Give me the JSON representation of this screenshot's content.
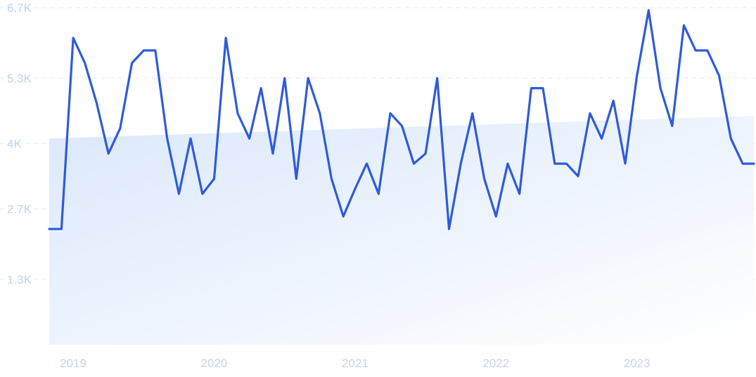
{
  "chart_data": {
    "type": "line",
    "title": "",
    "xlabel": "",
    "ylabel": "",
    "colors": {
      "line": "#2f5bd9",
      "trend_fill_top": "#dbe8fb",
      "trend_fill_bottom": "#ffffff",
      "tick_text": "#c5d3f1",
      "grid": "#e3e8f2"
    },
    "grid": true,
    "y_ticks": [
      {
        "value": 6700,
        "label": "6.7K"
      },
      {
        "value": 5300,
        "label": "5.3K"
      },
      {
        "value": 4000,
        "label": "4K"
      },
      {
        "value": 2700,
        "label": "2.7K"
      },
      {
        "value": 1300,
        "label": "1.3K"
      }
    ],
    "ylim": [
      0,
      6700
    ],
    "x_ticks": [
      {
        "value": 2019.0,
        "label": "2019"
      },
      {
        "value": 2020.0,
        "label": "2020"
      },
      {
        "value": 2021.0,
        "label": "2021"
      },
      {
        "value": 2022.0,
        "label": "2022"
      },
      {
        "value": 2023.0,
        "label": "2023"
      }
    ],
    "xlim": [
      2018.83,
      2023.83
    ],
    "trend": {
      "start": 4100,
      "end": 4550
    },
    "series": [
      {
        "x": [
          2018.83,
          2018.917,
          2019.0,
          2019.083,
          2019.167,
          2019.25,
          2019.333,
          2019.417,
          2019.5,
          2019.583,
          2019.667,
          2019.75,
          2019.833,
          2019.917,
          2020.0,
          2020.083,
          2020.167,
          2020.25,
          2020.333,
          2020.417,
          2020.5,
          2020.583,
          2020.667,
          2020.75,
          2020.833,
          2020.917,
          2021.0,
          2021.083,
          2021.167,
          2021.25,
          2021.333,
          2021.417,
          2021.5,
          2021.583,
          2021.667,
          2021.75,
          2021.833,
          2021.917,
          2022.0,
          2022.083,
          2022.167,
          2022.25,
          2022.333,
          2022.417,
          2022.5,
          2022.583,
          2022.667,
          2022.75,
          2022.833,
          2022.917,
          2023.0,
          2023.083,
          2023.167,
          2023.25,
          2023.333,
          2023.417,
          2023.5,
          2023.583,
          2023.667,
          2023.75,
          2023.83
        ],
        "values": [
          2300,
          2300,
          6100,
          5600,
          4800,
          3800,
          4300,
          5600,
          5850,
          5850,
          4100,
          3000,
          4100,
          3000,
          3300,
          6100,
          4600,
          4100,
          5100,
          3800,
          5300,
          3300,
          5300,
          4600,
          3300,
          2550,
          3100,
          3600,
          3000,
          4600,
          4350,
          3600,
          3800,
          5300,
          2300,
          3600,
          4600,
          3300,
          2550,
          3600,
          3000,
          5100,
          5100,
          3600,
          3600,
          3350,
          4600,
          4100,
          4850,
          3600,
          5350,
          6650,
          5100,
          4350,
          6350,
          5850,
          5850,
          5350,
          4100,
          3600,
          3600
        ]
      }
    ]
  }
}
